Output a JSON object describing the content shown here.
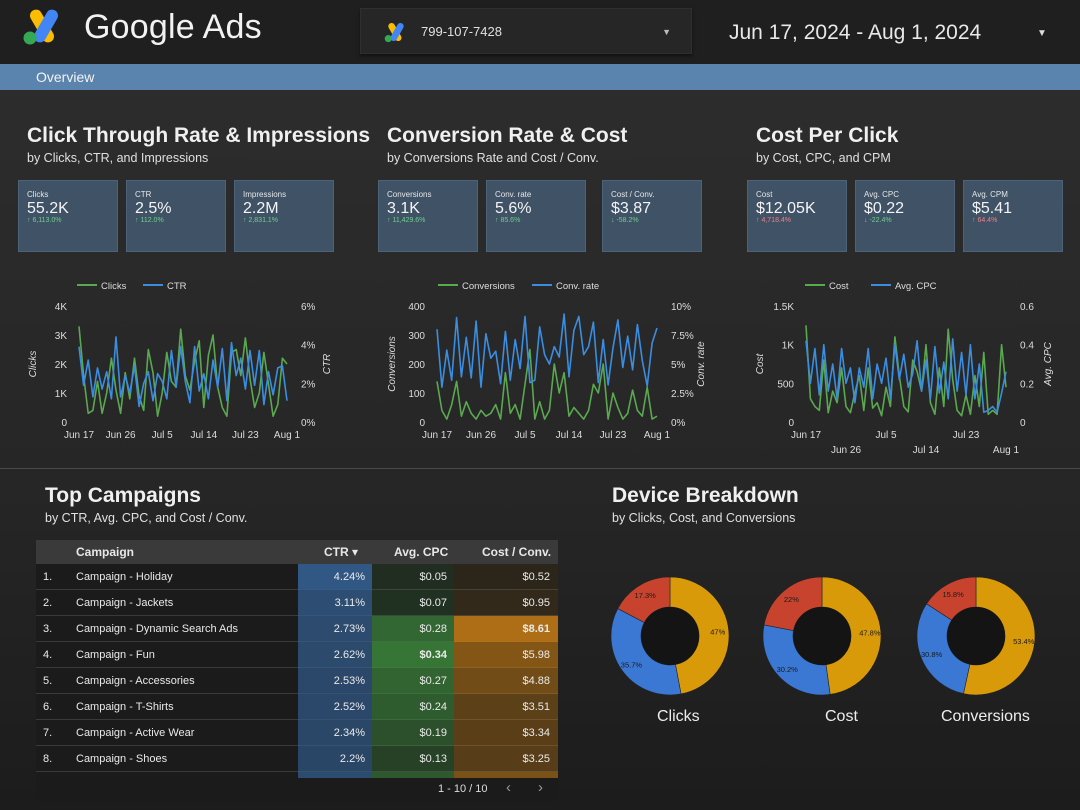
{
  "header": {
    "brand": "Google Ads",
    "account_id": "799-107-7428",
    "date_range": "Jun 17, 2024 - Aug 1, 2024"
  },
  "tabs": {
    "overview": "Overview"
  },
  "sections": {
    "ctr": {
      "title": "Click Through Rate & Impressions",
      "subtitle": "by Clicks, CTR, and Impressions"
    },
    "conv": {
      "title": "Conversion Rate & Cost",
      "subtitle": "by Conversions Rate and Cost / Conv."
    },
    "cpc": {
      "title": "Cost Per Click",
      "subtitle": "by Cost, CPC, and CPM"
    },
    "campaigns": {
      "title": "Top Campaigns",
      "subtitle": "by CTR, Avg. CPC, and Cost / Conv."
    },
    "device": {
      "title": "Device Breakdown",
      "subtitle": "by Clicks, Cost, and Conversions"
    }
  },
  "kpis": [
    {
      "label": "Clicks",
      "value": "55.2K",
      "delta": "↑ 6,113.0%",
      "trend": "up"
    },
    {
      "label": "CTR",
      "value": "2.5%",
      "delta": "↑ 112.0%",
      "trend": "up"
    },
    {
      "label": "Impressions",
      "value": "2.2M",
      "delta": "↑ 2,831.1%",
      "trend": "up"
    },
    {
      "label": "Conversions",
      "value": "3.1K",
      "delta": "↑ 11,429.6%",
      "trend": "up"
    },
    {
      "label": "Conv. rate",
      "value": "5.6%",
      "delta": "↑ 85.6%",
      "trend": "up"
    },
    {
      "label": "Cost / Conv.",
      "value": "$3.87",
      "delta": "↓ -58.2%",
      "trend": "up"
    },
    {
      "label": "Cost",
      "value": "$12.05K",
      "delta": "↑ 4,718.4%",
      "trend": "down"
    },
    {
      "label": "Avg. CPC",
      "value": "$0.22",
      "delta": "↓ -22.4%",
      "trend": "up"
    },
    {
      "label": "Avg. CPM",
      "value": "$5.41",
      "delta": "↑ 64.4%",
      "trend": "down"
    }
  ],
  "colors": {
    "green_series": "#5aa84f",
    "blue_series": "#3b8de0",
    "donut_orange": "#d99a0a",
    "donut_blue": "#3a78d4",
    "donut_red": "#c8432e",
    "kpi_bg": "#3f5266"
  },
  "chart_data": [
    {
      "type": "line",
      "legend": [
        "Clicks",
        "CTR"
      ],
      "ylabel": "Clicks",
      "y2label": "CTR",
      "yticks": [
        "0",
        "1K",
        "2K",
        "3K",
        "4K"
      ],
      "ylim": [
        0,
        4000
      ],
      "y2ticks": [
        "0%",
        "2%",
        "4%",
        "6%"
      ],
      "y2lim": [
        0,
        6
      ],
      "xticks": [
        "Jun 17",
        "Jun 26",
        "Jul 5",
        "Jul 14",
        "Jul 23",
        "Aug 1"
      ],
      "series": [
        {
          "name": "Clicks",
          "axis": "left",
          "values": [
            3300,
            1600,
            300,
            400,
            1400,
            300,
            1000,
            2200,
            1100,
            300,
            1700,
            800,
            2200,
            900,
            400,
            2500,
            1700,
            200,
            1000,
            2400,
            1400,
            1200,
            3200,
            1600,
            1100,
            2100,
            2800,
            500,
            2300,
            3000,
            1200,
            500,
            200,
            2400,
            2500,
            1600,
            2900,
            1500,
            500,
            1000,
            2400,
            1300,
            200,
            600,
            2200,
            2000
          ]
        },
        {
          "name": "CTR",
          "axis": "right",
          "values": [
            3.9,
            1.9,
            3.2,
            1.3,
            2.8,
            1.7,
            2.6,
            1.2,
            4.4,
            1.3,
            2.4,
            1.5,
            2.9,
            0.8,
            2.0,
            2.6,
            1.1,
            2.5,
            2.1,
            1.2,
            3.7,
            1.8,
            3.9,
            2.1,
            1.0,
            3.9,
            1.6,
            2.5,
            1.2,
            3.2,
            1.8,
            3.8,
            1.1,
            4.1,
            2.4,
            3.3,
            1.7,
            3.7,
            1.9,
            3.7,
            0.9,
            2.6,
            1.4,
            2.8,
            2.9,
            1.1
          ]
        }
      ]
    },
    {
      "type": "line",
      "legend": [
        "Conversions",
        "Conv. rate"
      ],
      "ylabel": "Conversions",
      "y2label": "Conv. rate",
      "yticks": [
        "0",
        "100",
        "200",
        "300",
        "400"
      ],
      "ylim": [
        0,
        400
      ],
      "y2ticks": [
        "0%",
        "2.5%",
        "5%",
        "7.5%",
        "10%"
      ],
      "y2lim": [
        0,
        10
      ],
      "xticks": [
        "Jun 17",
        "Jun 26",
        "Jul 5",
        "Jul 14",
        "Jul 23",
        "Aug 1"
      ],
      "series": [
        {
          "name": "Conversions",
          "axis": "left",
          "values": [
            140,
            40,
            10,
            60,
            140,
            20,
            70,
            30,
            10,
            40,
            20,
            30,
            60,
            10,
            170,
            30,
            60,
            10,
            130,
            250,
            10,
            70,
            10,
            40,
            200,
            100,
            170,
            20,
            50,
            30,
            10,
            40,
            130,
            100,
            200,
            10,
            100,
            50,
            10,
            30,
            110,
            40,
            20,
            120,
            10,
            20
          ]
        },
        {
          "name": "Conv. rate",
          "axis": "right",
          "values": [
            8.0,
            3.0,
            6.2,
            3.6,
            9.0,
            3.9,
            7.3,
            3.8,
            8.7,
            3.0,
            7.6,
            5.5,
            6.1,
            3.3,
            7.8,
            3.6,
            7.1,
            4.6,
            9.1,
            3.4,
            3.6,
            8.2,
            5.8,
            5.0,
            6.5,
            5.6,
            9.3,
            3.9,
            7.9,
            9.1,
            5.8,
            6.5,
            8.6,
            3.4,
            7.1,
            3.2,
            6.4,
            8.8,
            4.7,
            7.4,
            4.5,
            8.4,
            5.3,
            3.1,
            6.8,
            8.1
          ]
        }
      ]
    },
    {
      "type": "line",
      "legend": [
        "Cost",
        "Avg. CPC"
      ],
      "ylabel": "Cost",
      "y2label": "Avg. CPC",
      "yticks": [
        "0",
        "500",
        "1K",
        "1.5K"
      ],
      "ylim": [
        0,
        1500
      ],
      "y2ticks": [
        "0",
        "0.2",
        "0.4",
        "0.6"
      ],
      "y2lim": [
        0,
        0.6
      ],
      "xticks_top": [
        "Jun 17",
        "Jul 5",
        "Jul 23"
      ],
      "xticks_bottom": [
        "Jun 26",
        "Jul 14",
        "Aug 1"
      ],
      "series": [
        {
          "name": "Cost",
          "axis": "left",
          "values": [
            1250,
            300,
            200,
            150,
            800,
            120,
            400,
            250,
            700,
            200,
            120,
            380,
            600,
            150,
            700,
            180,
            250,
            80,
            450,
            200,
            1100,
            600,
            200,
            130,
            800,
            650,
            400,
            1000,
            250,
            100,
            700,
            200,
            1200,
            550,
            150,
            80,
            350,
            100,
            600,
            200,
            900,
            100,
            150,
            100,
            1000,
            450
          ]
        },
        {
          "name": "Avg. CPC",
          "axis": "right",
          "values": [
            0.42,
            0.2,
            0.38,
            0.14,
            0.4,
            0.16,
            0.3,
            0.12,
            0.38,
            0.2,
            0.28,
            0.1,
            0.28,
            0.18,
            0.38,
            0.12,
            0.3,
            0.2,
            0.33,
            0.12,
            0.4,
            0.22,
            0.35,
            0.18,
            0.25,
            0.42,
            0.16,
            0.32,
            0.12,
            0.39,
            0.15,
            0.31,
            0.12,
            0.43,
            0.16,
            0.36,
            0.14,
            0.4,
            0.12,
            0.3,
            0.05,
            0.06,
            0.08,
            0.05,
            0.15,
            0.26
          ]
        }
      ]
    },
    {
      "type": "pie",
      "label": "Clicks",
      "slices": [
        {
          "name": "orange",
          "value": 47.0,
          "text": "47%"
        },
        {
          "name": "blue",
          "value": 35.7,
          "text": "35.7%"
        },
        {
          "name": "red",
          "value": 17.3,
          "text": "17.3%"
        }
      ]
    },
    {
      "type": "pie",
      "label": "Cost",
      "slices": [
        {
          "name": "orange",
          "value": 47.8,
          "text": "47.8%"
        },
        {
          "name": "blue",
          "value": 30.2,
          "text": "30.2%"
        },
        {
          "name": "red",
          "value": 22.0,
          "text": "22%"
        }
      ]
    },
    {
      "type": "pie",
      "label": "Conversions",
      "slices": [
        {
          "name": "orange",
          "value": 53.4,
          "text": "53.4%"
        },
        {
          "name": "blue",
          "value": 30.8,
          "text": "30.8%"
        },
        {
          "name": "red",
          "value": 15.8,
          "text": "15.8%"
        }
      ]
    }
  ],
  "campaigns_table": {
    "headers": {
      "campaign": "Campaign",
      "ctr": "CTR ▾",
      "cpc": "Avg. CPC",
      "cost_conv": "Cost / Conv."
    },
    "rows": [
      {
        "n": "1.",
        "name": "Campaign - Holiday",
        "ctr": "4.24%",
        "cpc": "$0.05",
        "cost": "$0.52",
        "ctr_v": 4.24,
        "cpc_v": 0.05,
        "cost_v": 0.52
      },
      {
        "n": "2.",
        "name": "Campaign - Jackets",
        "ctr": "3.11%",
        "cpc": "$0.07",
        "cost": "$0.95",
        "ctr_v": 3.11,
        "cpc_v": 0.07,
        "cost_v": 0.95
      },
      {
        "n": "3.",
        "name": "Campaign - Dynamic Search Ads",
        "ctr": "2.73%",
        "cpc": "$0.28",
        "cost": "$8.61",
        "ctr_v": 2.73,
        "cpc_v": 0.28,
        "cost_v": 8.61
      },
      {
        "n": "4.",
        "name": "Campaign - Fun",
        "ctr": "2.62%",
        "cpc": "$0.34",
        "cost": "$5.98",
        "ctr_v": 2.62,
        "cpc_v": 0.34,
        "cost_v": 5.98
      },
      {
        "n": "5.",
        "name": "Campaign - Accessories",
        "ctr": "2.53%",
        "cpc": "$0.27",
        "cost": "$4.88",
        "ctr_v": 2.53,
        "cpc_v": 0.27,
        "cost_v": 4.88
      },
      {
        "n": "6.",
        "name": "Campaign - T-Shirts",
        "ctr": "2.52%",
        "cpc": "$0.24",
        "cost": "$3.51",
        "ctr_v": 2.52,
        "cpc_v": 0.24,
        "cost_v": 3.51
      },
      {
        "n": "7.",
        "name": "Campaign - Active Wear",
        "ctr": "2.34%",
        "cpc": "$0.19",
        "cost": "$3.34",
        "ctr_v": 2.34,
        "cpc_v": 0.19,
        "cost_v": 3.34
      },
      {
        "n": "8.",
        "name": "Campaign - Shoes",
        "ctr": "2.2%",
        "cpc": "$0.13",
        "cost": "$3.25",
        "ctr_v": 2.2,
        "cpc_v": 0.13,
        "cost_v": 3.25
      }
    ],
    "pager": "1 - 10 / 10"
  }
}
